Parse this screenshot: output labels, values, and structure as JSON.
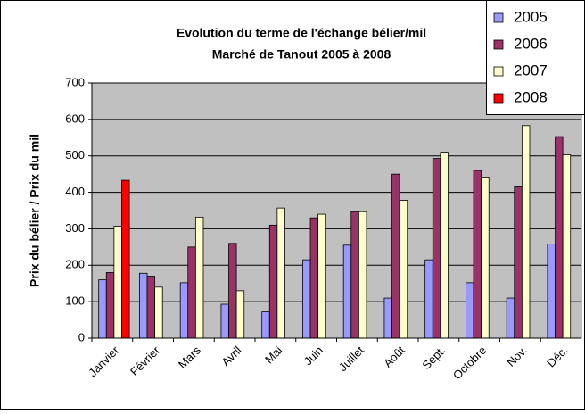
{
  "chart_data": {
    "type": "bar",
    "title": "Evolution du terme de l'échange bélier/mil",
    "subtitle": "Marché de Tanout 2005 à 2008",
    "y_label": "Prix du bélier / Prix du mil",
    "categories": [
      "Janvier",
      "Février",
      "Mars",
      "Avril",
      "Mai",
      "Juin",
      "Juillet",
      "Août",
      "Sept.",
      "Octobre",
      "Nov.",
      "Déc."
    ],
    "series": [
      {
        "name": "2005",
        "color": "#9999ff",
        "values": [
          160,
          178,
          152,
          93,
          72,
          215,
          255,
          110,
          215,
          152,
          110,
          258
        ]
      },
      {
        "name": "2006",
        "color": "#993366",
        "values": [
          180,
          170,
          250,
          260,
          310,
          330,
          347,
          450,
          493,
          460,
          415,
          553
        ]
      },
      {
        "name": "2007",
        "color": "#ffffcc",
        "values": [
          307,
          140,
          332,
          130,
          357,
          340,
          347,
          378,
          510,
          442,
          583,
          503
        ]
      },
      {
        "name": "2008",
        "color": "#ff0000",
        "values": [
          433,
          null,
          null,
          null,
          null,
          null,
          null,
          null,
          null,
          null,
          null,
          null
        ]
      }
    ],
    "ylim": [
      0,
      700
    ],
    "yticks": [
      0,
      100,
      200,
      300,
      400,
      500,
      600,
      700
    ],
    "grid": true,
    "legend": "top-right"
  }
}
